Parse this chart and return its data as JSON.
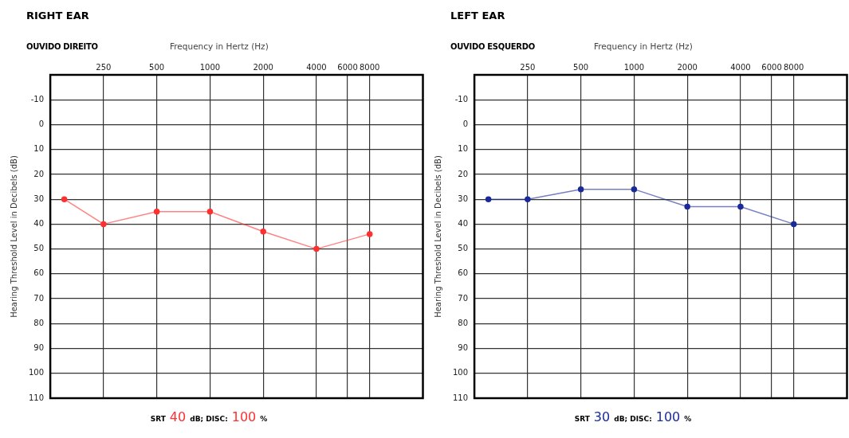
{
  "chart_data": [
    {
      "type": "line",
      "title": "RIGHT EAR",
      "subtitle": "OUVIDO DIREITO",
      "xlabel": "Frequency in Hertz (Hz)",
      "ylabel": "Hearing Threshold Level in Decibels (dB)",
      "annotations": [
        "SRT",
        "40",
        "dB; DISC:",
        "100",
        "%"
      ],
      "log": "x",
      "x": [
        150,
        250,
        500,
        1000,
        2000,
        4000,
        8000
      ],
      "series": [
        {
          "color": "#ff3030",
          "values": [
            30,
            40,
            35,
            35,
            43,
            50,
            44
          ]
        }
      ],
      "xlim": [
        125,
        16000
      ],
      "xticks": [
        250,
        500,
        1000,
        2000,
        4000,
        6000,
        8000
      ],
      "ylim": [
        110,
        -20
      ],
      "yticks": [
        -10,
        0,
        10,
        20,
        30,
        40,
        50,
        60,
        70,
        80,
        90,
        100,
        110
      ],
      "grid": true,
      "legend": false,
      "marker": "circle",
      "line_style": "solid"
    },
    {
      "type": "line",
      "title": "LEFT EAR",
      "subtitle": "OUVIDO ESQUERDO",
      "xlabel": "Frequency in Hertz (Hz)",
      "ylabel": "Hearing Threshold Level in Decibels (dB)",
      "annotations": [
        "SRT",
        "30",
        "dB; DISC:",
        "100",
        "%"
      ],
      "log": "x",
      "x": [
        150,
        250,
        500,
        1000,
        2000,
        4000,
        8000
      ],
      "series": [
        {
          "color": "#1a2a9a",
          "values": [
            30,
            30,
            26,
            26,
            33,
            33,
            40
          ]
        }
      ],
      "xlim": [
        125,
        16000
      ],
      "xticks": [
        250,
        500,
        1000,
        2000,
        4000,
        6000,
        8000
      ],
      "ylim": [
        110,
        -20
      ],
      "yticks": [
        -10,
        0,
        10,
        20,
        30,
        40,
        50,
        60,
        70,
        80,
        90,
        100,
        110
      ],
      "grid": true,
      "legend": false,
      "marker": "circle",
      "line_style": "solid"
    }
  ]
}
